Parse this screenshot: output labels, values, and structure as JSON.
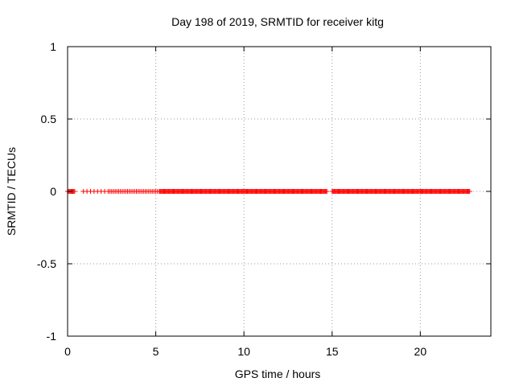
{
  "chart_data": {
    "type": "scatter",
    "title": "Day 198 of 2019, SRMTID for receiver kitg",
    "xlabel": "GPS time / hours",
    "ylabel": "SRMTID / TECUs",
    "xlim": [
      0,
      24
    ],
    "ylim": [
      -1,
      1
    ],
    "xticks": [
      0,
      5,
      10,
      15,
      20
    ],
    "xtick_labels": [
      "0",
      "5",
      "10",
      "15",
      "20"
    ],
    "yticks": [
      -1,
      -0.5,
      0,
      0.5,
      1
    ],
    "ytick_labels": [
      "-1",
      "-0.5",
      "0",
      "0.5",
      "1"
    ],
    "grid": true,
    "marker": "+",
    "series": [
      {
        "name": "SRMTID",
        "color": "#ff0000",
        "y_constant": 0,
        "x_segments": [
          {
            "start": 0.0,
            "end": 0.4,
            "step": 0.05
          },
          {
            "start": 0.9,
            "end": 2.3,
            "step": 0.2
          },
          {
            "start": 2.4,
            "end": 5.1,
            "step": 0.1
          },
          {
            "start": 5.2,
            "end": 14.7,
            "step": 0.05
          },
          {
            "start": 15.0,
            "end": 22.8,
            "step": 0.05
          }
        ]
      }
    ]
  }
}
